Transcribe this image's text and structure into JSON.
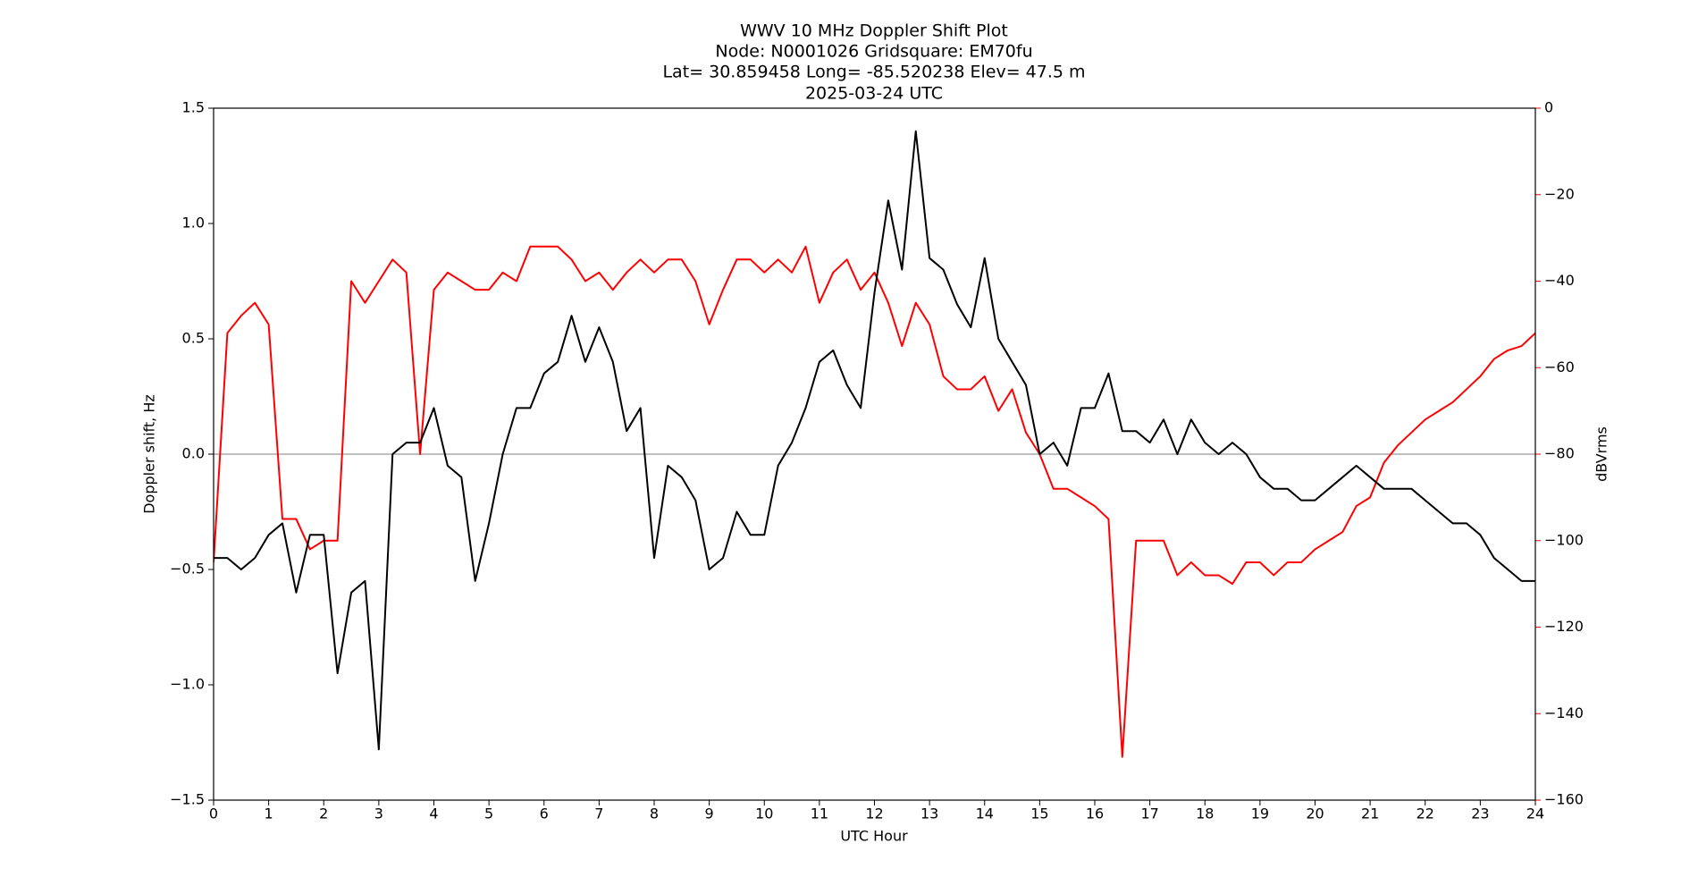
{
  "chart_data": {
    "type": "line",
    "title": [
      "WWV 10 MHz Doppler Shift Plot",
      "Node:  N0001026     Gridsquare:  EM70fu",
      "Lat= 30.859458    Long= -85.520238    Elev= 47.5 m",
      "2025-03-24  UTC"
    ],
    "xlabel": "UTC Hour",
    "ylabel": "Doppler shift, Hz",
    "y2label": "dBVrms",
    "x": [
      0,
      0.25,
      0.5,
      0.75,
      1,
      1.25,
      1.5,
      1.75,
      2,
      2.25,
      2.5,
      2.75,
      3,
      3.25,
      3.5,
      3.75,
      4,
      4.25,
      4.5,
      4.75,
      5,
      5.25,
      5.5,
      5.75,
      6,
      6.25,
      6.5,
      6.75,
      7,
      7.25,
      7.5,
      7.75,
      8,
      8.25,
      8.5,
      8.75,
      9,
      9.25,
      9.5,
      9.75,
      10,
      10.25,
      10.5,
      10.75,
      11,
      11.25,
      11.5,
      11.75,
      12,
      12.25,
      12.5,
      12.75,
      13,
      13.25,
      13.5,
      13.75,
      14,
      14.25,
      14.5,
      14.75,
      15,
      15.25,
      15.5,
      15.75,
      16,
      16.25,
      16.5,
      16.75,
      17,
      17.25,
      17.5,
      17.75,
      18,
      18.25,
      18.5,
      18.75,
      19,
      19.25,
      19.5,
      19.75,
      20,
      20.25,
      20.5,
      20.75,
      21,
      21.25,
      21.5,
      21.75,
      22,
      22.25,
      22.5,
      22.75,
      23,
      23.25,
      23.5,
      23.75,
      24
    ],
    "series": [
      {
        "color": "#000000",
        "values": [
          -0.45,
          -0.45,
          -0.5,
          -0.45,
          -0.35,
          -0.3,
          -0.6,
          -0.35,
          -0.35,
          -0.95,
          -0.6,
          -0.55,
          -1.28,
          0.0,
          0.05,
          0.05,
          0.2,
          -0.05,
          -0.1,
          -0.55,
          -0.3,
          0.0,
          0.2,
          0.2,
          0.35,
          0.4,
          0.6,
          0.4,
          0.55,
          0.4,
          0.1,
          0.2,
          -0.45,
          -0.05,
          -0.1,
          -0.2,
          -0.5,
          -0.45,
          -0.25,
          -0.35,
          -0.35,
          -0.05,
          0.05,
          0.2,
          0.4,
          0.45,
          0.3,
          0.2,
          0.7,
          1.1,
          0.8,
          1.4,
          0.85,
          0.8,
          0.65,
          0.55,
          0.85,
          0.5,
          0.4,
          0.3,
          0.0,
          0.05,
          -0.05,
          0.2,
          0.2,
          0.35,
          0.1,
          0.1,
          0.05,
          0.15,
          0.0,
          0.15,
          0.05,
          0.0,
          0.05,
          0.0,
          -0.1,
          -0.15,
          -0.15,
          -0.2,
          -0.2,
          -0.15,
          -0.1,
          -0.05,
          -0.1,
          -0.15,
          -0.15,
          -0.15,
          -0.2,
          -0.25,
          -0.3,
          -0.3,
          -0.35,
          -0.45,
          -0.5,
          -0.55,
          -0.55
        ]
      },
      {
        "color": "#ff0000",
        "axis": "y2",
        "values": [
          -105,
          -52,
          -48,
          -45,
          -50,
          -95,
          -95,
          -102,
          -100,
          -100,
          -40,
          -45,
          -40,
          -35,
          -38,
          -80,
          -42,
          -38,
          -40,
          -42,
          -42,
          -38,
          -40,
          -32,
          -32,
          -32,
          -35,
          -40,
          -38,
          -42,
          -38,
          -35,
          -38,
          -35,
          -35,
          -40,
          -50,
          -42,
          -35,
          -35,
          -38,
          -35,
          -38,
          -32,
          -45,
          -38,
          -35,
          -42,
          -38,
          -45,
          -55,
          -45,
          -50,
          -62,
          -65,
          -65,
          -62,
          -70,
          -65,
          -75,
          -80,
          -88,
          -88,
          -90,
          -92,
          -95,
          -150,
          -100,
          -100,
          -100,
          -108,
          -105,
          -108,
          -108,
          -110,
          -105,
          -105,
          -108,
          -105,
          -105,
          -102,
          -100,
          -98,
          -92,
          -90,
          -82,
          -78,
          -75,
          -72,
          -70,
          -68,
          -65,
          -62,
          -58,
          -56,
          -55,
          -52
        ]
      }
    ],
    "xlim": [
      0,
      24
    ],
    "xticks": [
      0,
      1,
      2,
      3,
      4,
      5,
      6,
      7,
      8,
      9,
      10,
      11,
      12,
      13,
      14,
      15,
      16,
      17,
      18,
      19,
      20,
      21,
      22,
      23,
      24
    ],
    "ylim": [
      -1.5,
      1.5
    ],
    "yticks": [
      {
        "value": -1.5,
        "label": "−1.5"
      },
      {
        "value": -1.0,
        "label": "−1.0"
      },
      {
        "value": -0.5,
        "label": "−0.5"
      },
      {
        "value": 0.0,
        "label": "0.0"
      },
      0.5,
      {
        "value": 1.0,
        "label": "1.0"
      },
      1.5
    ],
    "y2lim": [
      -160,
      0
    ],
    "y2ticks": [
      {
        "value": -160,
        "label": "−160"
      },
      {
        "value": -140,
        "label": "−140"
      },
      {
        "value": -120,
        "label": "−120"
      },
      {
        "value": -100,
        "label": "−100"
      },
      {
        "value": -80,
        "label": "−80"
      },
      {
        "value": -60,
        "label": "−60"
      },
      {
        "value": -40,
        "label": "−40"
      },
      {
        "value": -20,
        "label": "−20"
      },
      0
    ],
    "y2color": "#ff0000",
    "hline": 0,
    "hline_color": "#999999"
  }
}
